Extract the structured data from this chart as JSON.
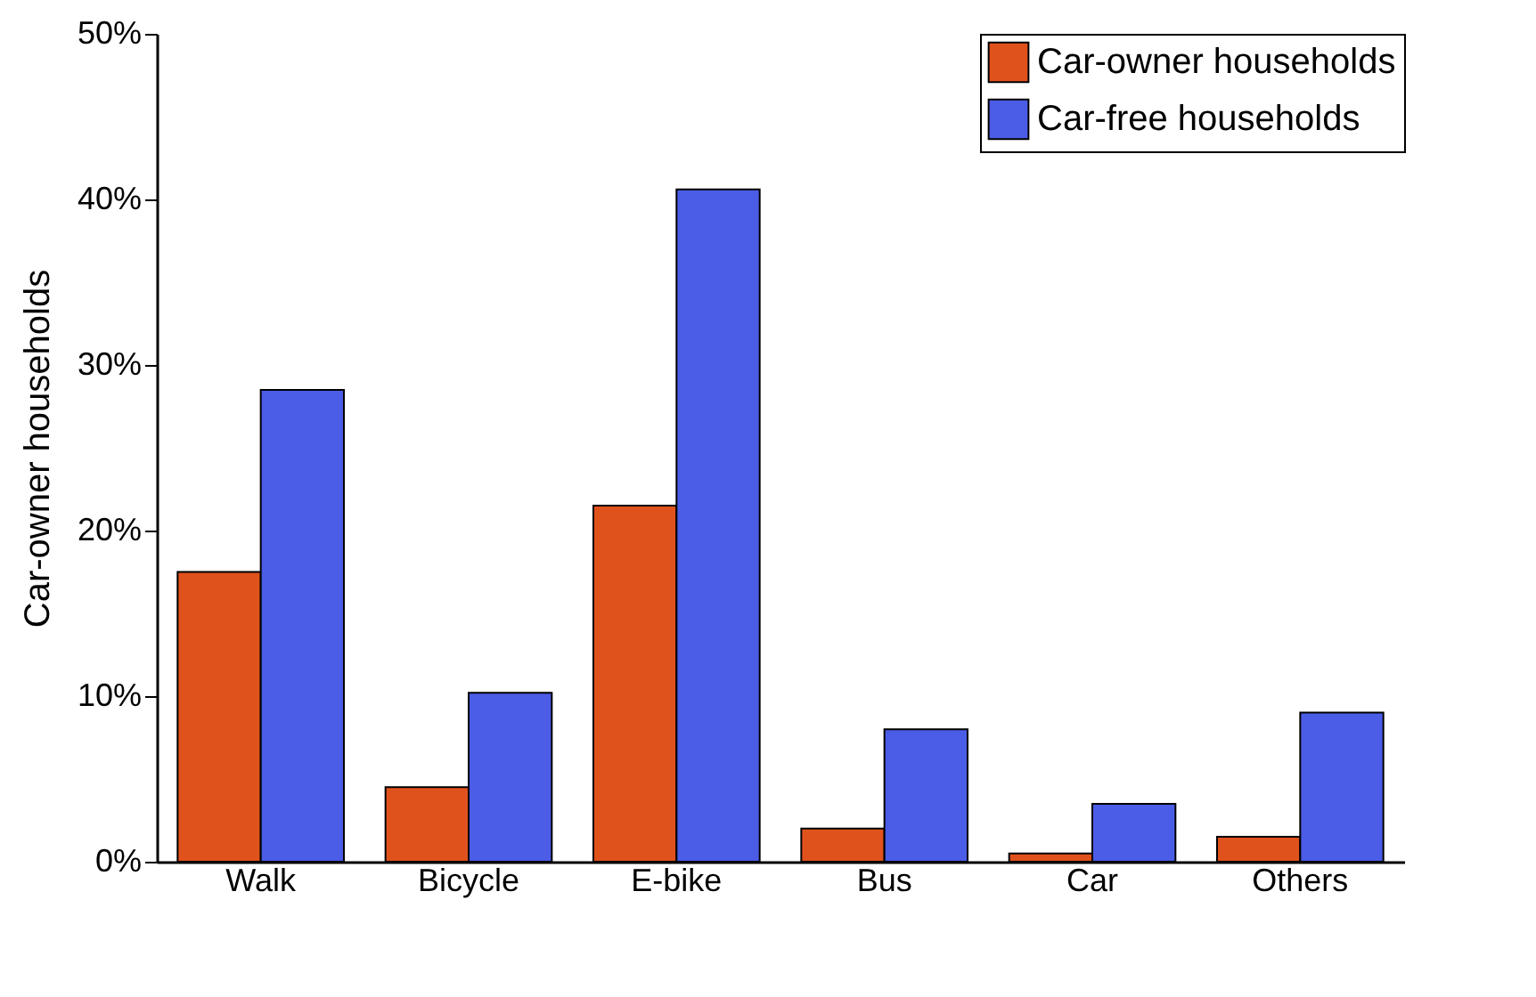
{
  "chart_data": {
    "type": "bar",
    "ylabel": "Car-owner households",
    "categories": [
      "Walk",
      "Bicycle",
      "E-bike",
      "Bus",
      "Car",
      "Others"
    ],
    "series": [
      {
        "name": "Car-owner households",
        "color": "#e0521c",
        "values": [
          17.5,
          4.5,
          21.5,
          2,
          0.5,
          1.5
        ]
      },
      {
        "name": "Car-free households",
        "color": "#4b5ce6",
        "values": [
          28.5,
          10.2,
          40.6,
          8,
          3.5,
          9
        ]
      }
    ],
    "ylim": [
      0,
      50
    ],
    "yticks": [
      {
        "value": 0,
        "label": "0%"
      },
      {
        "value": 10,
        "label": "10%"
      },
      {
        "value": 20,
        "label": "20%"
      },
      {
        "value": 30,
        "label": "30%"
      },
      {
        "value": 40,
        "label": "40%"
      },
      {
        "value": 50,
        "label": "50%"
      }
    ],
    "grid": false,
    "legend": "top right"
  }
}
